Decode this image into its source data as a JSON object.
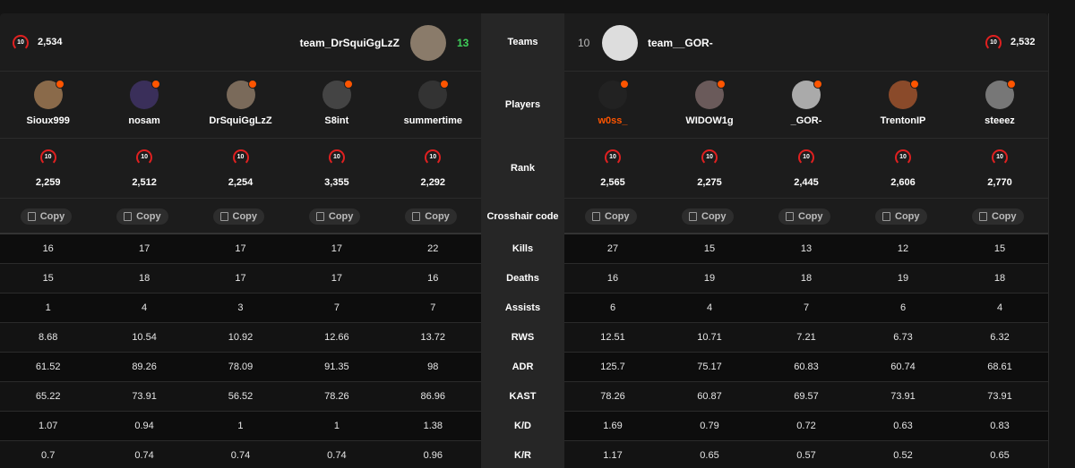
{
  "teams": {
    "label": "Teams",
    "left": {
      "name": "team_DrSquiGgLzZ",
      "score": "13",
      "level": "10",
      "elo": "2,534"
    },
    "right": {
      "name": "team__GOR-",
      "score": "10",
      "level": "10",
      "elo": "2,532"
    }
  },
  "players_label": "Players",
  "rank_label": "Rank",
  "crosshair_label": "Crosshair code",
  "players": {
    "left": [
      {
        "name": "Sioux999",
        "level": "10",
        "elo": "2,259",
        "crosshair": "Copy"
      },
      {
        "name": "nosam",
        "level": "10",
        "elo": "2,512",
        "crosshair": "Copy"
      },
      {
        "name": "DrSquiGgLzZ",
        "level": "10",
        "elo": "2,254",
        "crosshair": "Copy"
      },
      {
        "name": "S8int",
        "level": "10",
        "elo": "3,355",
        "crosshair": "Copy"
      },
      {
        "name": "summertime",
        "level": "10",
        "elo": "2,292",
        "crosshair": "Copy"
      }
    ],
    "right": [
      {
        "name": "w0ss_",
        "level": "10",
        "elo": "2,565",
        "crosshair": "Copy"
      },
      {
        "name": "WIDOW1g",
        "level": "10",
        "elo": "2,275",
        "crosshair": "Copy"
      },
      {
        "name": "_GOR-",
        "level": "10",
        "elo": "2,445",
        "crosshair": "Copy"
      },
      {
        "name": "TrentonIP",
        "level": "10",
        "elo": "2,606",
        "crosshair": "Copy"
      },
      {
        "name": "steeez",
        "level": "10",
        "elo": "2,770",
        "crosshair": "Copy"
      }
    ]
  },
  "stats": [
    {
      "label": "Kills",
      "left": [
        "16",
        "17",
        "17",
        "17",
        "22"
      ],
      "right": [
        "27",
        "15",
        "13",
        "12",
        "15"
      ]
    },
    {
      "label": "Deaths",
      "left": [
        "15",
        "18",
        "17",
        "17",
        "16"
      ],
      "right": [
        "16",
        "19",
        "18",
        "19",
        "18"
      ]
    },
    {
      "label": "Assists",
      "left": [
        "1",
        "4",
        "3",
        "7",
        "7"
      ],
      "right": [
        "6",
        "4",
        "7",
        "6",
        "4"
      ]
    },
    {
      "label": "RWS",
      "left": [
        "8.68",
        "10.54",
        "10.92",
        "12.66",
        "13.72"
      ],
      "right": [
        "12.51",
        "10.71",
        "7.21",
        "6.73",
        "6.32"
      ]
    },
    {
      "label": "ADR",
      "left": [
        "61.52",
        "89.26",
        "78.09",
        "91.35",
        "98"
      ],
      "right": [
        "125.7",
        "75.17",
        "60.83",
        "60.74",
        "68.61"
      ]
    },
    {
      "label": "KAST",
      "left": [
        "65.22",
        "73.91",
        "56.52",
        "78.26",
        "86.96"
      ],
      "right": [
        "78.26",
        "60.87",
        "69.57",
        "73.91",
        "73.91"
      ]
    },
    {
      "label": "K/D",
      "left": [
        "1.07",
        "0.94",
        "1",
        "1",
        "1.38"
      ],
      "right": [
        "1.69",
        "0.79",
        "0.72",
        "0.63",
        "0.83"
      ]
    },
    {
      "label": "K/R",
      "left": [
        "0.7",
        "0.74",
        "0.74",
        "0.74",
        "0.96"
      ],
      "right": [
        "1.17",
        "0.65",
        "0.57",
        "0.52",
        "0.65"
      ]
    }
  ]
}
